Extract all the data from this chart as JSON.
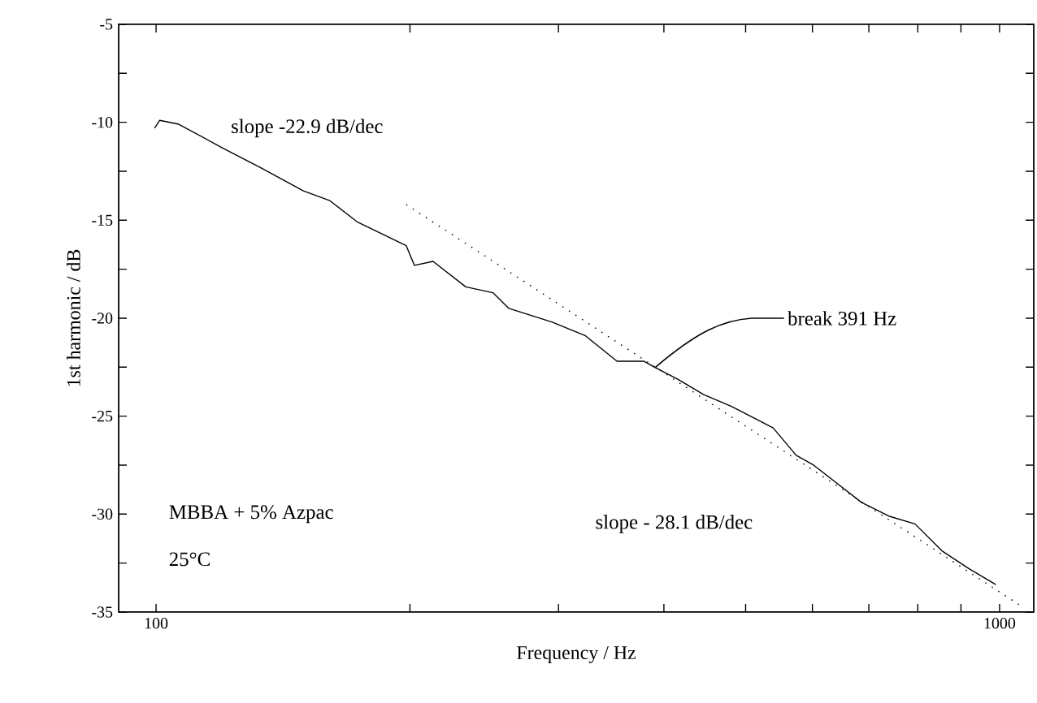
{
  "chart_data": {
    "type": "line",
    "xlabel": "Frequency / Hz",
    "ylabel": "1st harmonic / dB",
    "log": "x",
    "xlim": [
      90.3,
      1098
    ],
    "ylim": [
      -35,
      -5
    ],
    "xticks": [
      100,
      {
        "value": 200,
        "label": null
      },
      {
        "value": 300,
        "label": null
      },
      {
        "value": 400,
        "label": null
      },
      {
        "value": 500,
        "label": null
      },
      {
        "value": 600,
        "label": null
      },
      {
        "value": 700,
        "label": null
      },
      {
        "value": 800,
        "label": null
      },
      {
        "value": 900,
        "label": null
      },
      1000
    ],
    "yticks": [
      -35,
      {
        "value": -32.5,
        "label": null
      },
      -30,
      {
        "value": -27.5,
        "label": null
      },
      -25,
      {
        "value": -22.5,
        "label": null
      },
      -20,
      {
        "value": -17.5,
        "label": null
      },
      -15,
      {
        "value": -12.5,
        "label": null
      },
      -10,
      {
        "value": -7.5,
        "label": null
      },
      -5
    ],
    "grid": false,
    "series": [
      {
        "color": "#000000",
        "line_style": "solid",
        "x": [
          99.6,
          101,
          106.4,
          119.8,
          132.8,
          149.5,
          160.7,
          173.4,
          198,
          202.4,
          213,
          232.9,
          250.8,
          262,
          295,
          323,
          352,
          379,
          390,
          415,
          446,
          481,
          539,
          574,
          602,
          636,
          686,
          739,
          794,
          856,
          921,
          990
        ],
        "values": [
          -10.3,
          -9.9,
          -10.1,
          -11.3,
          -12.3,
          -13.5,
          -14.0,
          -15.1,
          -16.3,
          -17.3,
          -17.1,
          -18.4,
          -18.7,
          -19.5,
          -20.2,
          -20.9,
          -22.2,
          -22.2,
          -22.5,
          -23.1,
          -23.9,
          -24.5,
          -25.6,
          -27.0,
          -27.5,
          -28.3,
          -29.4,
          -30.1,
          -30.5,
          -31.9,
          -32.8,
          -33.6
        ]
      },
      {
        "color": "#000000",
        "line_style": "dotted",
        "x": [
          198,
          1070
        ],
        "values": [
          -14.2,
          -34.8
        ]
      }
    ],
    "annotations": [
      "slope -22.9 dB/dec",
      {
        "text": "break 391 Hz",
        "x": 391,
        "y": -22.5
      },
      "slope - 28.1 dB/dec",
      "MBBA + 5% Azpac",
      "25°C"
    ]
  }
}
